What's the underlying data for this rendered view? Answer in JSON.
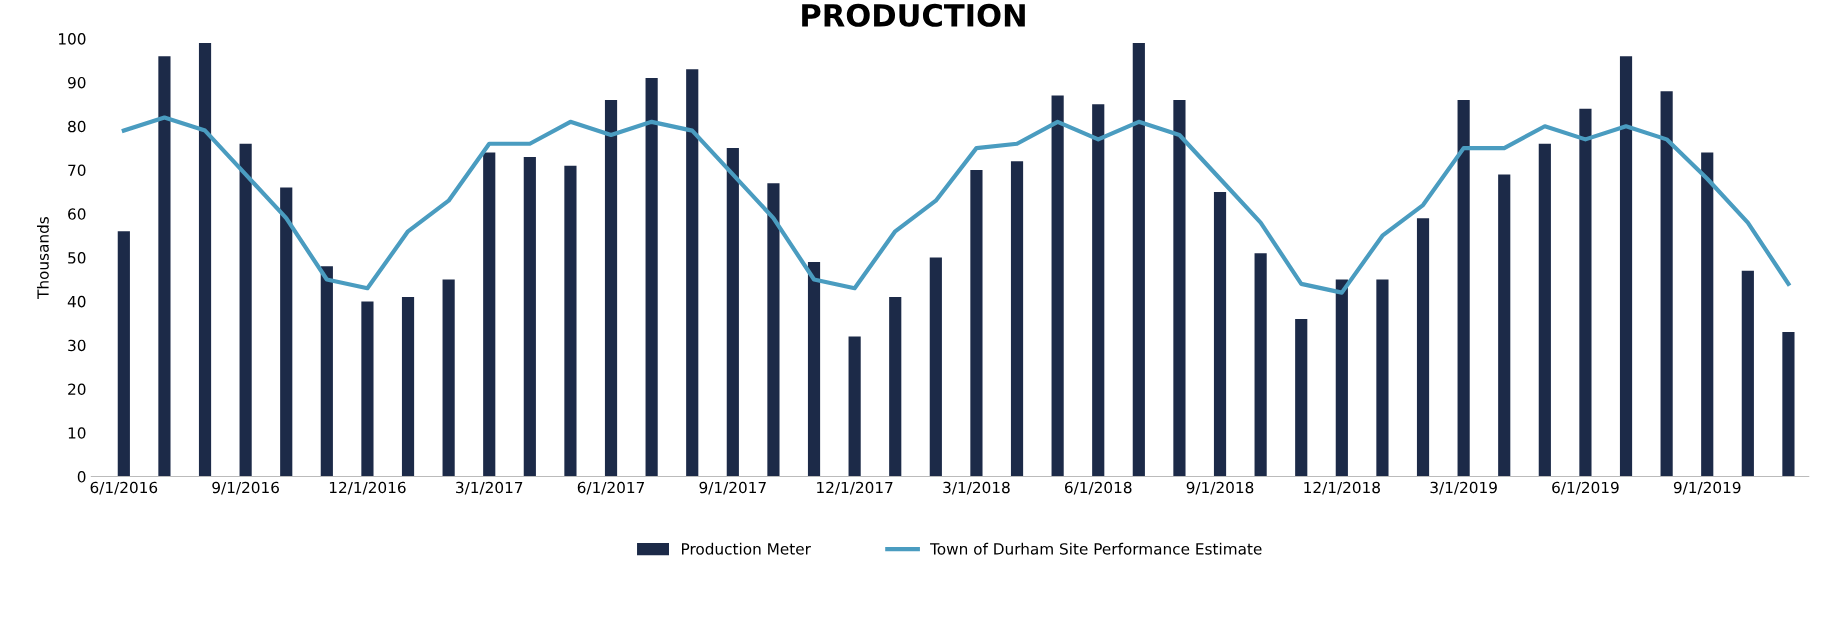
{
  "chart_data": {
    "type": "bar",
    "title": "PRODUCTION",
    "ylabel": "Thousands",
    "categories": [
      "6/1/2016",
      null,
      null,
      "9/1/2016",
      null,
      null,
      "12/1/2016",
      null,
      null,
      "3/1/2017",
      null,
      null,
      "6/1/2017",
      null,
      null,
      "9/1/2017",
      null,
      null,
      "12/1/2017",
      null,
      null,
      "3/1/2018",
      null,
      null,
      "6/1/2018",
      null,
      null,
      "9/1/2018",
      null,
      null,
      "12/1/2018",
      null,
      null,
      "3/1/2019",
      null,
      null,
      "6/1/2019",
      null,
      null,
      "9/1/2019",
      null,
      null
    ],
    "series": [
      {
        "name": "Production Meter",
        "color": "#1c2a48",
        "values": [
          56,
          96,
          99,
          76,
          66,
          48,
          40,
          41,
          45,
          74,
          73,
          71,
          86,
          91,
          93,
          75,
          67,
          49,
          32,
          41,
          50,
          70,
          72,
          87,
          85,
          99,
          86,
          65,
          51,
          36,
          45,
          45,
          59,
          86,
          69,
          76,
          84,
          96,
          88,
          74,
          47,
          33
        ]
      },
      {
        "name": "Town of Durham Site Performance Estimate",
        "type": "line",
        "color": "#4a9cc0",
        "values": [
          79,
          82,
          79,
          69,
          59,
          45,
          43,
          56,
          63,
          76,
          76,
          81,
          78,
          81,
          79,
          69,
          59,
          45,
          43,
          56,
          63,
          75,
          76,
          81,
          77,
          81,
          78,
          68,
          58,
          44,
          42,
          55,
          62,
          75,
          75,
          80,
          77,
          80,
          77,
          68,
          58,
          44
        ]
      }
    ],
    "ylim": [
      0,
      100
    ],
    "yticks": [
      0,
      10,
      20,
      30,
      40,
      50,
      60,
      70,
      80,
      90,
      100
    ],
    "grid": false,
    "legend": "bottom"
  }
}
